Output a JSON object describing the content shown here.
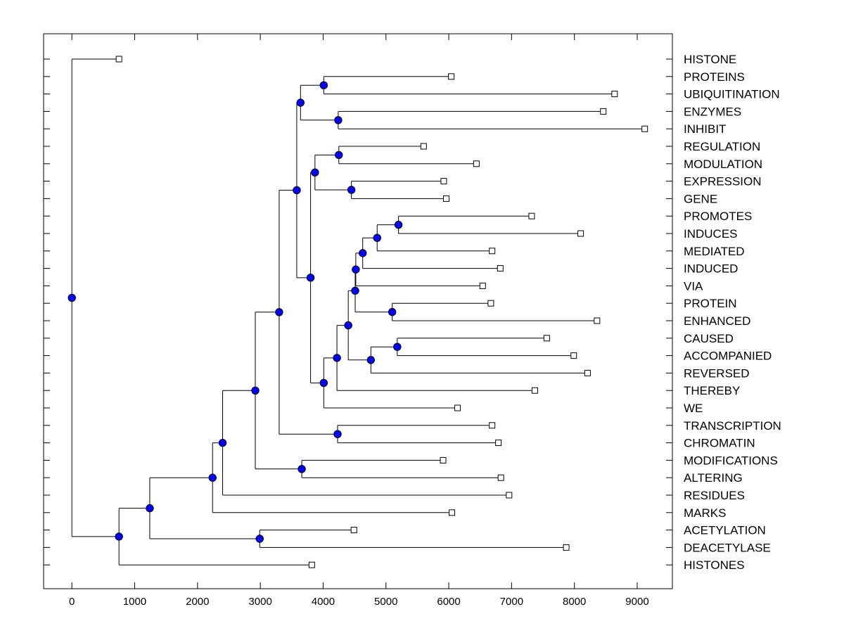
{
  "chart_data": {
    "type": "dendrogram",
    "title": "",
    "xlabel": "",
    "ylabel": "",
    "xlim": [
      -450,
      9560
    ],
    "xticks": [
      0,
      1000,
      2000,
      3000,
      4000,
      5000,
      6000,
      7000,
      8000,
      9000
    ],
    "xtick_labels": [
      "0",
      "1000",
      "2000",
      "3000",
      "4000",
      "5000",
      "6000",
      "7000",
      "8000",
      "9000"
    ],
    "leaves": [
      {
        "name": "HISTONE",
        "value": 750
      },
      {
        "name": "PROTEINS",
        "value": 6040
      },
      {
        "name": "UBIQUITINATION",
        "value": 8640
      },
      {
        "name": "ENZYMES",
        "value": 8460
      },
      {
        "name": "INHIBIT",
        "value": 9120
      },
      {
        "name": "REGULATION",
        "value": 5600
      },
      {
        "name": "MODULATION",
        "value": 6440
      },
      {
        "name": "EXPRESSION",
        "value": 5920
      },
      {
        "name": "GENE",
        "value": 5960
      },
      {
        "name": "PROMOTES",
        "value": 7320
      },
      {
        "name": "INDUCES",
        "value": 8100
      },
      {
        "name": "MEDIATED",
        "value": 6690
      },
      {
        "name": "INDUCED",
        "value": 6820
      },
      {
        "name": "VIA",
        "value": 6540
      },
      {
        "name": "PROTEIN",
        "value": 6670
      },
      {
        "name": "ENHANCED",
        "value": 8360
      },
      {
        "name": "CAUSED",
        "value": 7560
      },
      {
        "name": "ACCOMPANIED",
        "value": 7990
      },
      {
        "name": "REVERSED",
        "value": 8210
      },
      {
        "name": "THEREBY",
        "value": 7370
      },
      {
        "name": "WE",
        "value": 6140
      },
      {
        "name": "TRANSCRIPTION",
        "value": 6690
      },
      {
        "name": "CHROMATIN",
        "value": 6790
      },
      {
        "name": "MODIFICATIONS",
        "value": 5910
      },
      {
        "name": "ALTERING",
        "value": 6830
      },
      {
        "name": "RESIDUES",
        "value": 6960
      },
      {
        "name": "MARKS",
        "value": 6050
      },
      {
        "name": "ACETYLATION",
        "value": 4490
      },
      {
        "name": "DEACETYLASE",
        "value": 7870
      },
      {
        "name": "HISTONES",
        "value": 3820
      }
    ],
    "merges": [
      {
        "id": "m1",
        "value": 0,
        "children": [
          "HISTONE",
          "m2"
        ]
      },
      {
        "id": "m2",
        "value": 750,
        "children": [
          "m3",
          "HISTONES"
        ]
      },
      {
        "id": "m3",
        "value": 1240,
        "children": [
          "m4",
          "m5"
        ]
      },
      {
        "id": "m4",
        "value": 2240,
        "children": [
          "m6",
          "MARKS"
        ]
      },
      {
        "id": "m5",
        "value": 2990,
        "children": [
          "ACETYLATION",
          "DEACETYLASE"
        ]
      },
      {
        "id": "m6",
        "value": 2400,
        "children": [
          "m7",
          "RESIDUES"
        ]
      },
      {
        "id": "m7",
        "value": 2920,
        "children": [
          "m8",
          "m9"
        ]
      },
      {
        "id": "m8",
        "value": 3300,
        "children": [
          "m10",
          "m11"
        ]
      },
      {
        "id": "m9",
        "value": 3660,
        "children": [
          "MODIFICATIONS",
          "ALTERING"
        ]
      },
      {
        "id": "m10",
        "value": 3580,
        "children": [
          "m12",
          "m13"
        ]
      },
      {
        "id": "m11",
        "value": 4230,
        "children": [
          "TRANSCRIPTION",
          "CHROMATIN"
        ]
      },
      {
        "id": "m12",
        "value": 3640,
        "children": [
          "m14",
          "m15"
        ]
      },
      {
        "id": "m13",
        "value": 3800,
        "children": [
          "m16",
          "m17"
        ]
      },
      {
        "id": "m14",
        "value": 4010,
        "children": [
          "PROTEINS",
          "UBIQUITINATION"
        ]
      },
      {
        "id": "m15",
        "value": 4240,
        "children": [
          "ENZYMES",
          "INHIBIT"
        ]
      },
      {
        "id": "m16",
        "value": 3870,
        "children": [
          "m18",
          "m19"
        ]
      },
      {
        "id": "m17",
        "value": 4010,
        "children": [
          "m20",
          "WE"
        ]
      },
      {
        "id": "m18",
        "value": 4250,
        "children": [
          "REGULATION",
          "MODULATION"
        ]
      },
      {
        "id": "m19",
        "value": 4450,
        "children": [
          "EXPRESSION",
          "GENE"
        ]
      },
      {
        "id": "m20",
        "value": 4220,
        "children": [
          "m21",
          "THEREBY"
        ]
      },
      {
        "id": "m21",
        "value": 4400,
        "children": [
          "m22",
          "m23"
        ]
      },
      {
        "id": "m22",
        "value": 4510,
        "children": [
          "m24",
          "m25"
        ]
      },
      {
        "id": "m23",
        "value": 4760,
        "children": [
          "m26",
          "REVERSED"
        ]
      },
      {
        "id": "m24",
        "value": 4520,
        "children": [
          "m27",
          "VIA"
        ]
      },
      {
        "id": "m25",
        "value": 5100,
        "children": [
          "PROTEIN",
          "ENHANCED"
        ]
      },
      {
        "id": "m26",
        "value": 5180,
        "children": [
          "CAUSED",
          "ACCOMPANIED"
        ]
      },
      {
        "id": "m27",
        "value": 4630,
        "children": [
          "m28",
          "INDUCED"
        ]
      },
      {
        "id": "m28",
        "value": 4860,
        "children": [
          "m29",
          "MEDIATED"
        ]
      },
      {
        "id": "m29",
        "value": 5200,
        "children": [
          "PROMOTES",
          "INDUCES"
        ]
      }
    ],
    "colors": {
      "node_fill": "#0000ff",
      "node_stroke": "#000000",
      "leaf_fill": "#ffffff",
      "line": "#000000"
    }
  }
}
